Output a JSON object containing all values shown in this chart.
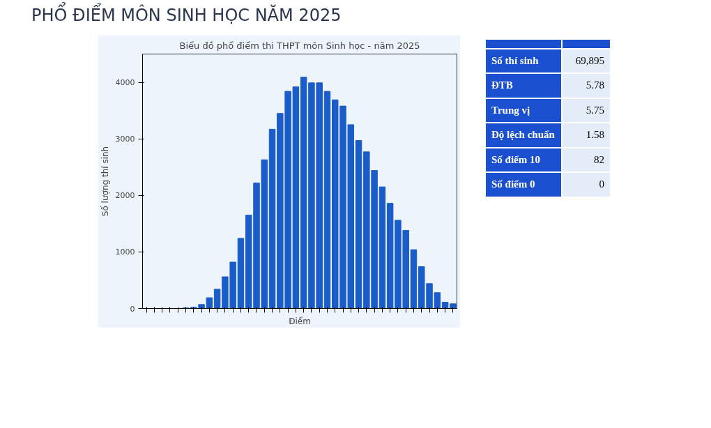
{
  "chart_data": {
    "type": "bar",
    "title": "PHỔ ĐIỂM MÔN SINH HỌC NĂM 2025",
    "subtitle": "Biểu đồ phổ điểm thi THPT môn Sinh học - năm 2025",
    "xlabel": "Điểm",
    "ylabel": "Số lượng thí sinh",
    "categories": [
      null,
      null,
      null,
      null,
      null,
      null,
      null,
      null,
      null,
      null,
      null,
      null,
      null,
      null,
      null,
      null,
      null,
      null,
      null,
      null,
      null,
      null,
      null,
      null,
      null,
      null,
      null,
      null,
      null,
      null,
      null,
      null,
      null,
      null,
      null,
      null,
      null,
      null,
      null,
      null
    ],
    "values": [
      0,
      0,
      0,
      0,
      0,
      10,
      20,
      70,
      190,
      340,
      560,
      820,
      1240,
      1650,
      2220,
      2630,
      3170,
      3450,
      3840,
      3920,
      4090,
      3990,
      3990,
      3840,
      3690,
      3580,
      3250,
      2970,
      2770,
      2440,
      2150,
      1860,
      1560,
      1380,
      1040,
      740,
      440,
      280,
      110,
      82
    ],
    "color": "#1a5cc8",
    "ylim": [
      0,
      4500
    ],
    "yticks": [
      0,
      1000,
      2000,
      3000,
      4000
    ],
    "grid": false,
    "annotations": [
      "Số thí sinh",
      "69,895",
      "ĐTB",
      "5.78",
      "Trung vị",
      "5.75",
      "Độ lệch chuẩn",
      "1.58",
      "Số điểm 10",
      "82",
      "Số điểm 0",
      "0"
    ]
  }
}
